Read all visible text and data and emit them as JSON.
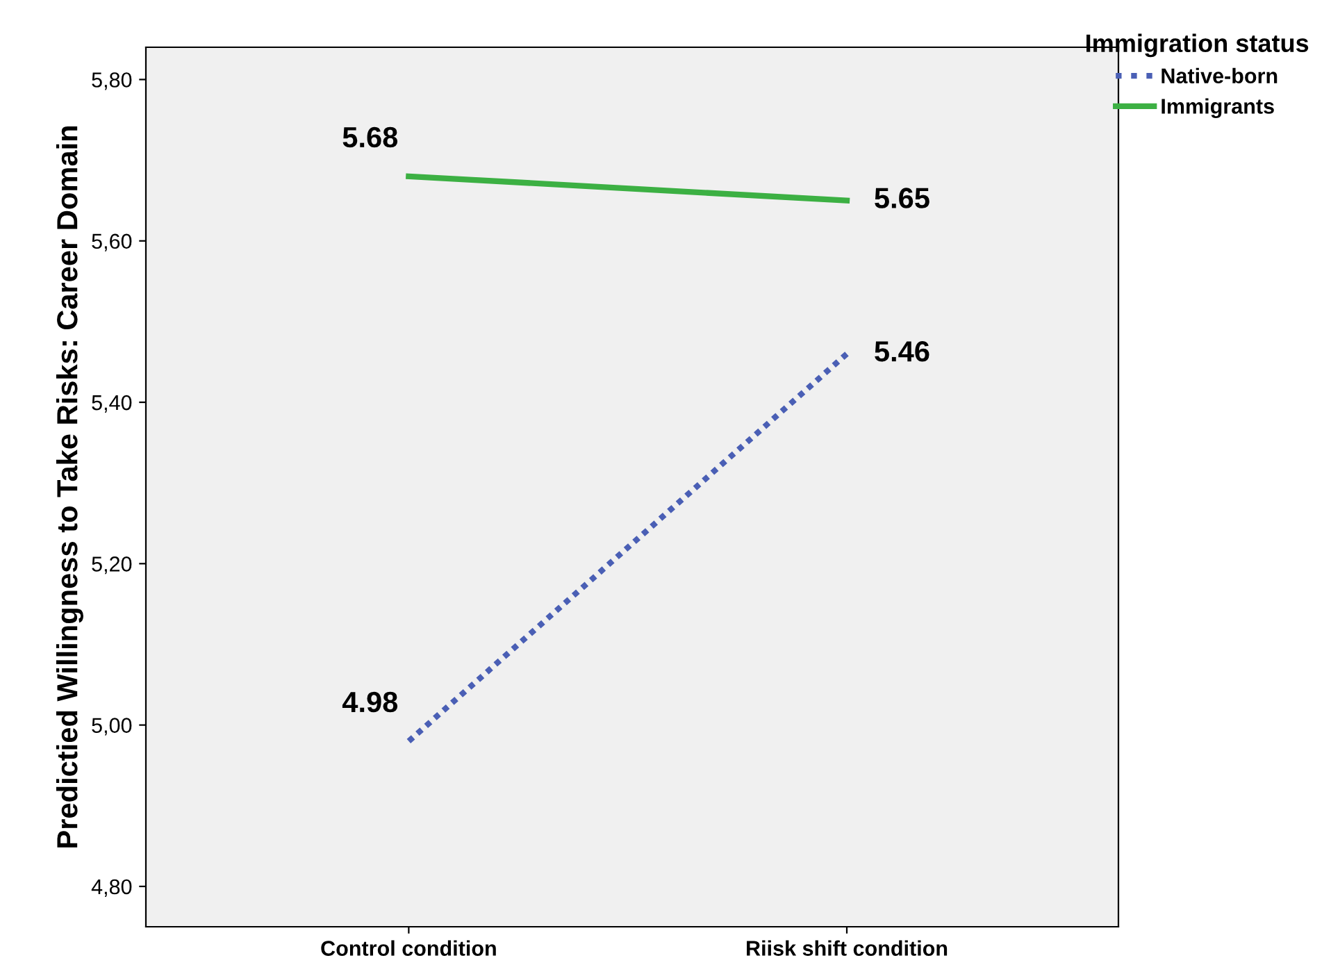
{
  "chart_data": {
    "type": "line",
    "ylabel": "Predictied Willingness to Take Risks: Career Domain",
    "legend_title": "Immigration status",
    "categories": [
      "Control condition",
      "Riisk shift condition"
    ],
    "series": [
      {
        "name": "Native-born",
        "color": "#4a5fb5",
        "values": [
          4.98,
          5.46
        ],
        "line_style": "dotted"
      },
      {
        "name": "Immigrants",
        "color": "#3cb043",
        "values": [
          5.68,
          5.65
        ],
        "line_style": "solid"
      }
    ],
    "ylim": [
      4.75,
      5.84
    ],
    "yticks": [
      {
        "value": 4.8,
        "label": "4,80"
      },
      {
        "value": 5.0,
        "label": "5,00"
      },
      {
        "value": 5.2,
        "label": "5,20"
      },
      {
        "value": 5.4,
        "label": "5,40"
      },
      {
        "value": 5.6,
        "label": "5,60"
      },
      {
        "value": 5.8,
        "label": "5,80"
      }
    ],
    "data_labels": true,
    "legend": "top right",
    "grid": false,
    "marker": "none"
  }
}
